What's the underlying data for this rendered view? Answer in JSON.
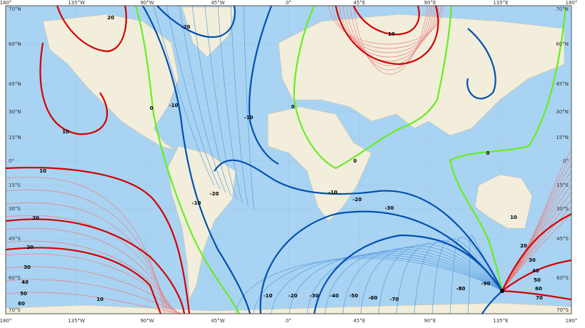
{
  "map": {
    "longitude_labels": [
      "180°",
      "135°W",
      "90°W",
      "45°W",
      "0°",
      "45°E",
      "90°E",
      "135°E",
      "180°"
    ],
    "latitude_labels": [
      "70°N",
      "60°N",
      "45°N",
      "30°N",
      "15°N",
      "0°",
      "15°S",
      "30°S",
      "45°S",
      "60°S",
      "70°S"
    ],
    "contour_labels": [
      "20",
      "10",
      "10",
      "20",
      "-20",
      "0",
      "-10",
      "10",
      "-10",
      "0",
      "-10",
      "0",
      "-20",
      "-30",
      "-20",
      "-10",
      "0",
      "10",
      "20",
      "30",
      "40",
      "50",
      "60",
      "70",
      "-10",
      "-20",
      "-30",
      "-40",
      "-50",
      "-60",
      "-70",
      "-80",
      "-90",
      "10",
      "20",
      "30",
      "40",
      "50",
      "60"
    ]
  }
}
